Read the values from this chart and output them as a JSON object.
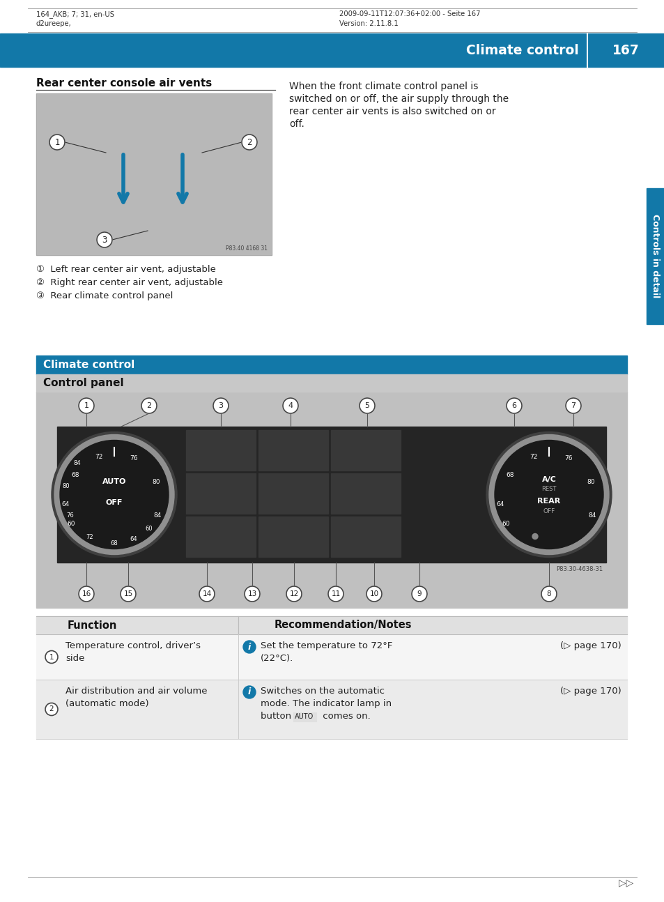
{
  "page_bg": "#ffffff",
  "header_text_left1": "164_AKB; 7; 31, en-US",
  "header_text_left2": "d2ureepe,",
  "header_text_right1": "2009-09-11T12:07:36+02:00 - Seite 167",
  "header_text_right2": "Version: 2.11.8.1",
  "header_band_color": "#1278a8",
  "header_band_text": "Climate control",
  "header_band_page": "167",
  "right_tab_color": "#1278a8",
  "right_tab_text": "Controls in detail",
  "section1_title": "Rear center console air vents",
  "section1_body_lines": [
    "When the front climate control panel is",
    "switched on or off, the air supply through the",
    "rear center air vents is also switched on or",
    "off."
  ],
  "caption1": "①  Left rear center air vent, adjustable",
  "caption2": "②  Right rear center air vent, adjustable",
  "caption3": "③  Rear climate control panel",
  "vent_image_placeholder": "P83.40 4168 31",
  "section2_header_color": "#1278a8",
  "section2_header_text": "Climate control",
  "section2_subheader_color": "#c8c8c8",
  "section2_subheader_text": "Control panel",
  "panel_image_bg": "#c0c0c0",
  "panel_dark_color": "#252525",
  "dial_ring_color": "#909090",
  "dial_center_color": "#1a1a1a",
  "left_dial_labels": [
    "AUTO",
    "OFF"
  ],
  "right_dial_labels": [
    "A/C",
    "REST",
    "REAR",
    "OFF"
  ],
  "temp_numbers": [
    "60",
    "64",
    "68",
    "72",
    "76",
    "80",
    "84"
  ],
  "callout_nums_top": [
    "1",
    "2",
    "3",
    "4",
    "5",
    "6",
    "7"
  ],
  "callout_nums_bot": [
    "16",
    "15",
    "14",
    "13",
    "12",
    "11",
    "10",
    "9",
    "8"
  ],
  "panel_image_ref": "P83.30-4638-31",
  "table_header_bg": "#e0e0e0",
  "table_row_bg1": "#f5f5f5",
  "table_row_bg2": "#ebebeb",
  "table_col1": "Function",
  "table_col2": "Recommendation/Notes",
  "table_row1_func": "Temperature control, driver’s\nside",
  "table_row1_info_line1": "Set the temperature to 72°F",
  "table_row1_info_line2": "(22°C).",
  "table_row1_page": "(▷ page 170)",
  "table_row2_func": "Air distribution and air volume\n(automatic mode)",
  "table_row2_info_line1": "Switches on the automatic",
  "table_row2_info_line2": "mode. The indicator lamp in",
  "table_row2_info_line3": "button  AUTO  comes on.",
  "table_row2_page": "(▷ page 170)",
  "info_icon_color": "#1278a8",
  "footer_arrow": "▷▷"
}
